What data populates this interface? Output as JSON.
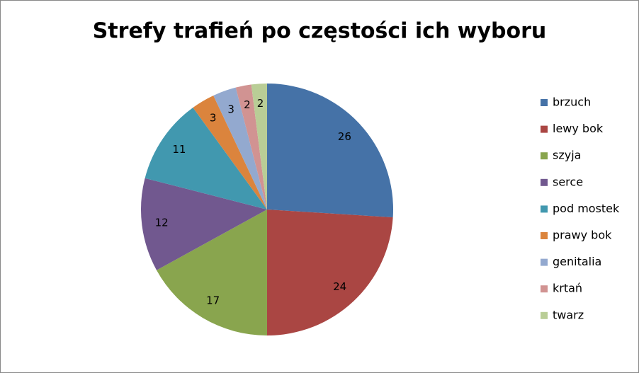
{
  "chart_data": {
    "type": "pie",
    "title": "Strefy trafień po częstości ich wyboru",
    "categories": [
      "brzuch",
      "lewy bok",
      "szyja",
      "serce",
      "pod mostek",
      "prawy bok",
      "genitalia",
      "krtań",
      "twarz"
    ],
    "values": [
      26,
      24,
      17,
      12,
      11,
      3,
      3,
      2,
      2
    ],
    "colors": [
      "#4572a7",
      "#aa4643",
      "#89a54e",
      "#71588f",
      "#4198af",
      "#db843d",
      "#93a9cf",
      "#d19392",
      "#b9cd96"
    ],
    "legend": "right"
  }
}
